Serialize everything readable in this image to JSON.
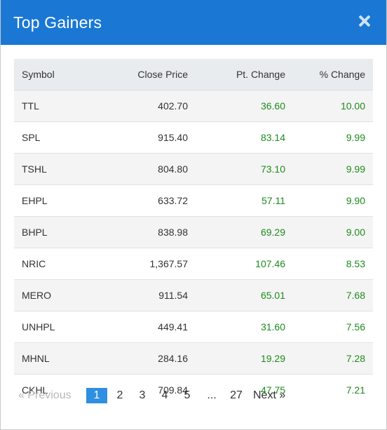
{
  "header": {
    "title": "Top Gainers"
  },
  "table": {
    "columns": [
      "Symbol",
      "Close Price",
      "Pt. Change",
      "% Change"
    ],
    "rows": [
      {
        "symbol": "TTL",
        "close": "402.70",
        "pt": "36.60",
        "pct": "10.00"
      },
      {
        "symbol": "SPL",
        "close": "915.40",
        "pt": "83.14",
        "pct": "9.99"
      },
      {
        "symbol": "TSHL",
        "close": "804.80",
        "pt": "73.10",
        "pct": "9.99"
      },
      {
        "symbol": "EHPL",
        "close": "633.72",
        "pt": "57.11",
        "pct": "9.90"
      },
      {
        "symbol": "BHPL",
        "close": "838.98",
        "pt": "69.29",
        "pct": "9.00"
      },
      {
        "symbol": "NRIC",
        "close": "1,367.57",
        "pt": "107.46",
        "pct": "8.53"
      },
      {
        "symbol": "MERO",
        "close": "911.54",
        "pt": "65.01",
        "pct": "7.68"
      },
      {
        "symbol": "UNHPL",
        "close": "449.41",
        "pt": "31.60",
        "pct": "7.56"
      },
      {
        "symbol": "MHNL",
        "close": "284.16",
        "pt": "19.29",
        "pct": "7.28"
      },
      {
        "symbol": "CKHL",
        "close": "709.84",
        "pt": "47.75",
        "pct": "7.21"
      }
    ]
  },
  "pagination": {
    "previous": "«  Previous",
    "pages": [
      "1",
      "2",
      "3",
      "4",
      "5"
    ],
    "ellipsis": "...",
    "last": "27",
    "next": "Next  »",
    "active_page": "1"
  },
  "colors": {
    "header_bg": "#1a78d4",
    "positive": "#1e8a1e",
    "active_page": "#2f8fe0"
  }
}
